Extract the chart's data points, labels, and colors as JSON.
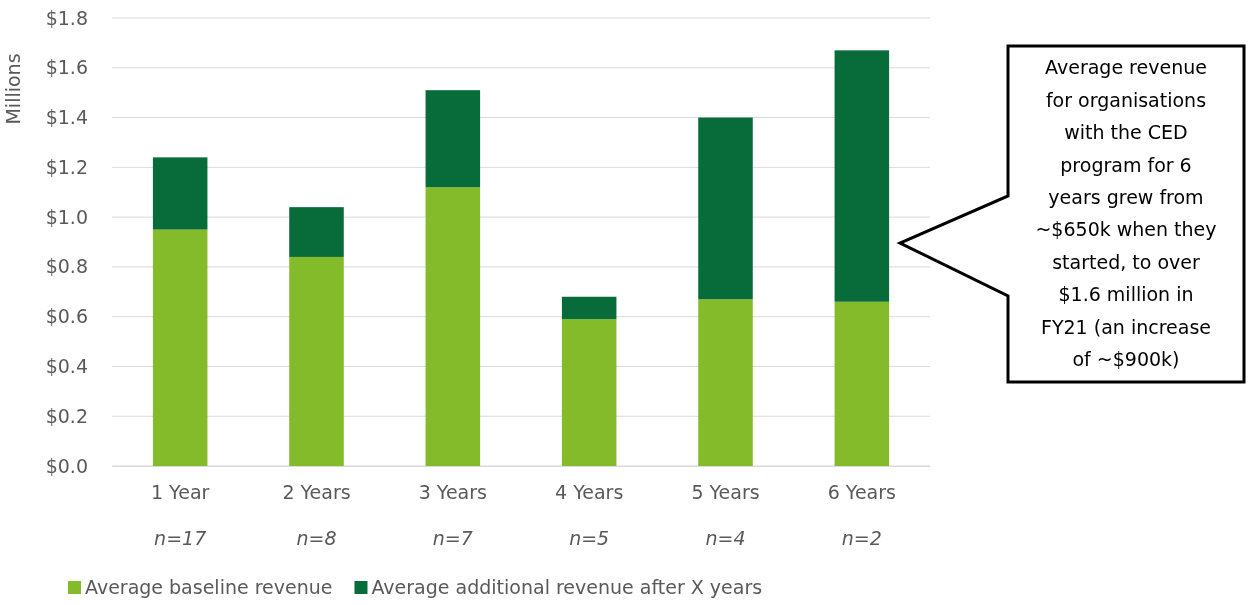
{
  "chart_data": {
    "type": "bar",
    "stacked": true,
    "ylabel": "Millions",
    "categories": [
      "1 Year",
      "2 Years",
      "3 Years",
      "4 Years",
      "5 Years",
      "6 Years"
    ],
    "series": [
      {
        "name": "Average baseline revenue",
        "color": "#84bb2a",
        "values": [
          0.95,
          0.84,
          1.12,
          0.59,
          0.67,
          0.66
        ]
      },
      {
        "name": "Average additional revenue after X years",
        "color": "#076b3a",
        "values": [
          0.29,
          0.2,
          0.39,
          0.09,
          0.73,
          1.01
        ]
      }
    ],
    "ylim": [
      0,
      1.8
    ],
    "yticks": [
      {
        "value": 0,
        "label": "$0.0"
      },
      {
        "value": 0.2,
        "label": "$0.2"
      },
      {
        "value": 0.4,
        "label": "$0.4"
      },
      {
        "value": 0.6,
        "label": "$0.6"
      },
      {
        "value": 0.8,
        "label": "$0.8"
      },
      {
        "value": 1,
        "label": "$1.0"
      },
      {
        "value": 1.2,
        "label": "$1.2"
      },
      {
        "value": 1.4,
        "label": "$1.4"
      },
      {
        "value": 1.6,
        "label": "$1.6"
      },
      {
        "value": 1.8,
        "label": "$1.8"
      }
    ],
    "grid": "y",
    "legend": "bottom",
    "annotations": [
      "n=17",
      "n=8",
      "n=7",
      "n=5",
      "n=4",
      "n=2",
      "Average revenue for organisations with the CED program for 6 years grew from ~$650k when they started, to over $1.6 million in FY21 (an increase of ~$900k)"
    ]
  }
}
